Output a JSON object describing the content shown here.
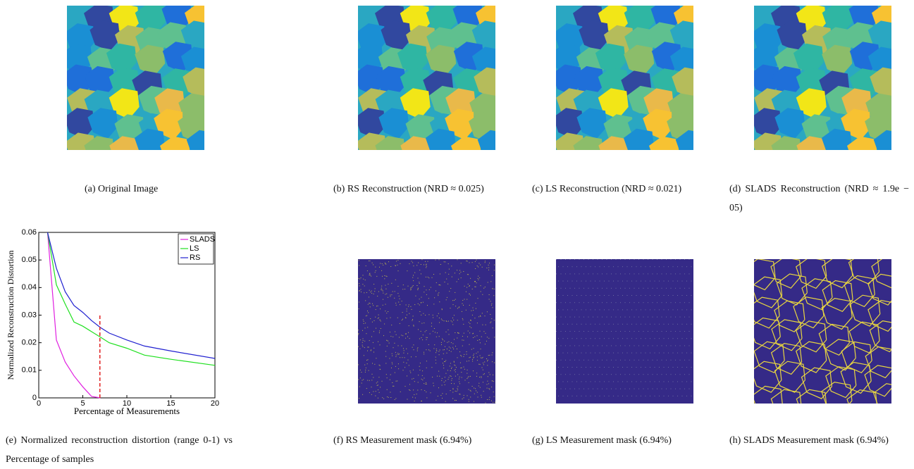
{
  "panels": [
    {
      "caption": "(a) Original Image"
    },
    {
      "caption": "(b) RS Reconstruction (NRD ≈ 0.025)"
    },
    {
      "caption": "(c) LS Reconstruction (NRD ≈ 0.021)"
    },
    {
      "caption": "(d) SLADS Reconstruction (NRD ≈ 1.9e − 05)"
    },
    {
      "caption": "(e) Normalized reconstruction distortion (range 0-1) vs Percentage of samples"
    },
    {
      "caption": "(f) RS Measurement mask (6.94%)"
    },
    {
      "caption": "(g) LS Measurement mask (6.94%)"
    },
    {
      "caption": "(h) SLADS Measurement mask (6.94%)"
    }
  ],
  "chart_data": {
    "type": "line",
    "xlabel": "Percentage of Measurements",
    "ylabel": "Normalized Reconstruction Distortion",
    "x": [
      1,
      2,
      3,
      4,
      5,
      6,
      7,
      8,
      10,
      12,
      15,
      20
    ],
    "series": [
      {
        "name": "SLADS",
        "color": "#e020e0",
        "values": [
          0.06,
          0.021,
          0.013,
          0.008,
          0.004,
          0.0005,
          0,
          null,
          null,
          null,
          null,
          null
        ]
      },
      {
        "name": "LS",
        "color": "#20e020",
        "values": [
          0.06,
          0.041,
          0.034,
          0.0275,
          0.026,
          0.024,
          0.022,
          0.02,
          0.018,
          0.0155,
          0.014,
          0.0118
        ]
      },
      {
        "name": "RS",
        "color": "#2020d0",
        "values": [
          0.06,
          0.047,
          0.0385,
          0.0335,
          0.031,
          0.028,
          0.0255,
          0.0235,
          0.021,
          0.0188,
          0.017,
          0.0143
        ]
      }
    ],
    "vline": {
      "x": 6.94,
      "y": [
        0,
        0.03
      ],
      "color": "#e02020"
    },
    "xlim": [
      0,
      20
    ],
    "ylim": [
      0,
      0.06
    ],
    "xticks": [
      0,
      5,
      10,
      15,
      20
    ],
    "yticks": [
      0,
      0.01,
      0.02,
      0.03,
      0.04,
      0.05,
      0.06
    ],
    "legend": "upper-right"
  }
}
